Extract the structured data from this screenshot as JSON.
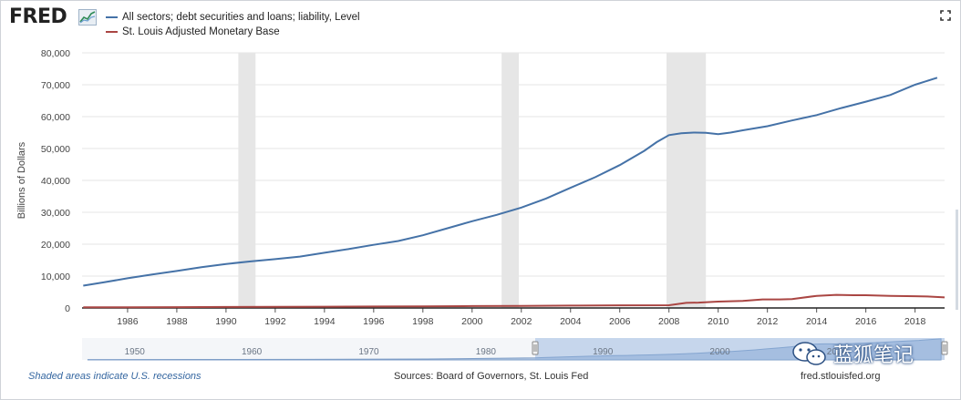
{
  "logo": {
    "text": "FRED",
    "icon": "fred-chart-icon"
  },
  "legend": [
    {
      "label": "All sectors; debt securities and loans; liability, Level",
      "color": "#4572a7"
    },
    {
      "label": "St. Louis Adjusted Monetary Base",
      "color": "#aa4643"
    }
  ],
  "footer": {
    "recession_note": "Shaded areas indicate U.S. recessions",
    "sources": "Sources: Board of Governors, St. Louis Fed",
    "site": "fred.stlouisfed.org"
  },
  "watermark": {
    "text": "蓝狐笔记",
    "icon": "wechat-icon"
  },
  "navigator": {
    "ticks": [
      "1950",
      "1960",
      "1970",
      "1980",
      "1990",
      "2000",
      "2010"
    ]
  },
  "chart_data": {
    "type": "line",
    "ylabel": "Billions of Dollars",
    "ylim": [
      0,
      80000
    ],
    "xlim": [
      1984.15,
      2019.2
    ],
    "y_ticks": [
      0,
      10000,
      20000,
      30000,
      40000,
      50000,
      60000,
      70000,
      80000
    ],
    "y_tick_labels": [
      "0",
      "10,000",
      "20,000",
      "30,000",
      "40,000",
      "50,000",
      "60,000",
      "70,000",
      "80,000"
    ],
    "x_ticks": [
      1986,
      1988,
      1990,
      1992,
      1994,
      1996,
      1998,
      2000,
      2002,
      2004,
      2006,
      2008,
      2010,
      2012,
      2014,
      2016,
      2018
    ],
    "grid": true,
    "recessions": [
      [
        1990.5,
        1991.2
      ],
      [
        2001.2,
        2001.9
      ],
      [
        2007.9,
        2009.5
      ]
    ],
    "series": [
      {
        "name": "All sectors; debt securities and loans; liability, Level",
        "color": "#4572a7",
        "x": [
          1984.2,
          1985,
          1986,
          1987,
          1988,
          1989,
          1990,
          1991,
          1992,
          1993,
          1994,
          1995,
          1996,
          1997,
          1998,
          1999,
          2000,
          2001,
          2002,
          2003,
          2004,
          2005,
          2006,
          2007,
          2007.5,
          2008,
          2008.5,
          2009,
          2009.5,
          2010,
          2010.5,
          2011,
          2012,
          2013,
          2014,
          2015,
          2016,
          2017,
          2018,
          2018.9
        ],
        "y": [
          7000,
          8000,
          9300,
          10500,
          11600,
          12800,
          13800,
          14600,
          15300,
          16100,
          17300,
          18500,
          19800,
          21000,
          22800,
          25000,
          27200,
          29200,
          31500,
          34300,
          37700,
          41000,
          44800,
          49300,
          52000,
          54200,
          54800,
          55000,
          54900,
          54500,
          55000,
          55700,
          57000,
          58800,
          60500,
          62700,
          64700,
          66800,
          70000,
          72200
        ]
      },
      {
        "name": "St. Louis Adjusted Monetary Base",
        "color": "#aa4643",
        "x": [
          1984.2,
          1986,
          1988,
          1990,
          1992,
          1994,
          1996,
          1998,
          2000,
          2002,
          2004,
          2006,
          2008,
          2008.7,
          2009.2,
          2010,
          2011,
          2011.8,
          2012.5,
          2013,
          2014,
          2014.8,
          2015.5,
          2016,
          2016.5,
          2017,
          2018,
          2018.5,
          2019.2
        ],
        "y": [
          200,
          230,
          260,
          300,
          340,
          400,
          450,
          500,
          600,
          650,
          750,
          820,
          850,
          1600,
          1700,
          2000,
          2200,
          2700,
          2700,
          2800,
          3800,
          4100,
          4000,
          4000,
          3900,
          3800,
          3700,
          3600,
          3300
        ]
      }
    ]
  }
}
